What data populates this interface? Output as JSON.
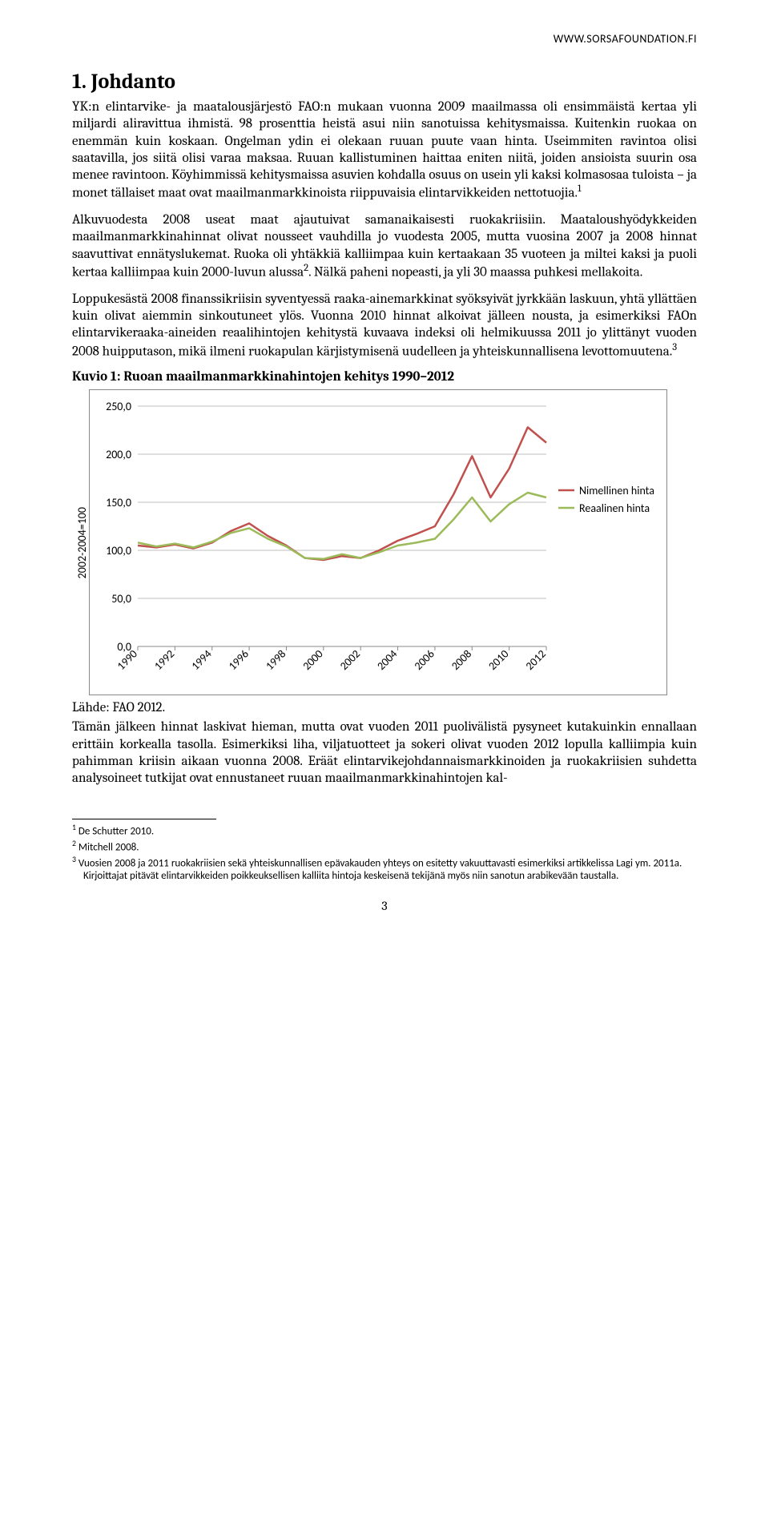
{
  "header_url": "WWW.SORSAFOUNDATION.FI",
  "section_title": "1. Johdanto",
  "paragraphs": {
    "p1": "YK:n elintarvike- ja maatalousjärjestö FAO:n mukaan vuonna 2009 maailmassa oli ensimmäistä kertaa yli miljardi aliravittua ihmistä. 98 prosenttia heistä asui niin sanotuissa kehitysmaissa. Kuitenkin ruokaa on enemmän kuin koskaan. Ongelman ydin ei olekaan ruuan puute vaan hinta. Useimmiten ravintoa olisi saatavilla, jos siitä olisi varaa maksaa. Ruuan kallistuminen haittaa eniten niitä, joiden ansioista suurin osa menee ravintoon. Köyhimmissä kehitysmaissa asuvien kohdalla osuus on usein yli kaksi kolmasosaa tuloista – ja monet tällaiset maat ovat maailmanmarkkinoista riippuvaisia elintarvikkeiden nettotuojia.",
    "p2": "Alkuvuodesta 2008 useat maat ajautuivat samanaikaisesti ruokakriisiin. Maataloushyödykkeiden maailmanmarkkinahinnat olivat nousseet vauhdilla jo vuodesta 2005, mutta vuosina 2007 ja 2008 hinnat saavuttivat ennätyslukemat. Ruoka oli yhtäkkiä kalliimpaa kuin kertaakaan 35 vuoteen ja miltei kaksi ja puoli kertaa kalliimpaa kuin 2000-luvun alussa",
    "p2b": ". Nälkä paheni nopeasti, ja yli 30 maassa puhkesi mellakoita.",
    "p3": "Loppukesästä 2008 finanssikriisin syventyessä raaka-ainemarkkinat syöksyivät jyrkkään laskuun, yhtä yllättäen kuin olivat aiemmin sinkoutuneet ylös. Vuonna 2010 hinnat alkoivat jälleen nousta, ja esimerkiksi FAOn elintarvikeraaka-aineiden reaalihintojen kehitystä kuvaava indeksi oli helmikuussa 2011 jo ylittänyt vuoden 2008 huipputason, mikä ilmeni ruokapulan kärjistymisenä uudelleen ja yhteiskunnallisena levottomuutena.",
    "p4": "Tämän jälkeen hinnat laskivat hieman, mutta ovat vuoden 2011 puolivälistä pysyneet kutakuinkin ennallaan erittäin korkealla tasolla. Esimerkiksi liha, viljatuotteet ja sokeri olivat vuoden 2012 lopulla kalliimpia kuin pahimman kriisin aikaan vuonna 2008. Eräät elintarvikejohdannaismarkkinoiden ja ruokakriisien suhdetta analysoineet tutkijat ovat ennustaneet ruuan maailmanmarkkinahintojen kal-"
  },
  "figure_title": "Kuvio 1: Ruoan maailmanmarkkinahintojen kehitys 1990–2012",
  "figure_caption": "Lähde: FAO 2012.",
  "chart": {
    "type": "line",
    "yaxis_label": "2002-2004=100",
    "ylim": [
      0,
      250
    ],
    "ytick_step": 50,
    "yticks": [
      "0,0",
      "50,0",
      "100,0",
      "150,0",
      "200,0",
      "250,0"
    ],
    "xticks": [
      "1990",
      "1992",
      "1994",
      "1996",
      "1998",
      "2000",
      "2002",
      "2004",
      "2006",
      "2008",
      "2010",
      "2012"
    ],
    "gridline_color": "#bfbfbf",
    "background_color": "#ffffff",
    "border_color": "#888888",
    "font_family": "Calibri, Arial, sans-serif",
    "tick_fontsize": 14,
    "line_width": 2.5,
    "legend": {
      "items": [
        {
          "label": "Nimellinen hinta",
          "color": "#c0504d"
        },
        {
          "label": "Reaalinen hinta",
          "color": "#9bbb59"
        }
      ],
      "fontsize": 14
    },
    "series": [
      {
        "name": "Nimellinen hinta",
        "color": "#c0504d",
        "x": [
          1990,
          1991,
          1992,
          1993,
          1994,
          1995,
          1996,
          1997,
          1998,
          1999,
          2000,
          2001,
          2002,
          2003,
          2004,
          2005,
          2006,
          2007,
          2008,
          2009,
          2010,
          2011,
          2012
        ],
        "y": [
          105,
          103,
          106,
          102,
          108,
          120,
          128,
          115,
          105,
          92,
          90,
          94,
          92,
          100,
          110,
          117,
          125,
          158,
          198,
          155,
          185,
          228,
          212
        ]
      },
      {
        "name": "Reaalinen hinta",
        "color": "#9bbb59",
        "x": [
          1990,
          1991,
          1992,
          1993,
          1994,
          1995,
          1996,
          1997,
          1998,
          1999,
          2000,
          2001,
          2002,
          2003,
          2004,
          2005,
          2006,
          2007,
          2008,
          2009,
          2010,
          2011,
          2012
        ],
        "y": [
          108,
          104,
          107,
          103,
          109,
          118,
          123,
          112,
          104,
          92,
          91,
          96,
          92,
          98,
          105,
          108,
          112,
          132,
          155,
          130,
          148,
          160,
          155
        ]
      }
    ]
  },
  "footnotes": {
    "f1": "De Schutter 2010.",
    "f2": "Mitchell 2008.",
    "f3": "Vuosien 2008 ja 2011 ruokakriisien sekä yhteiskunnallisen epävakauden yhteys on esitetty vakuuttavasti esimerkiksi artikkelissa Lagi ym. 2011a. Kirjoittajat pitävät elintarvikkeiden poikkeuksellisen kalliita hintoja keskeisenä tekijänä myös niin sanotun arabikevään taustalla."
  },
  "page_number": "3",
  "sup1": "1",
  "sup2": "2",
  "sup3": "3"
}
